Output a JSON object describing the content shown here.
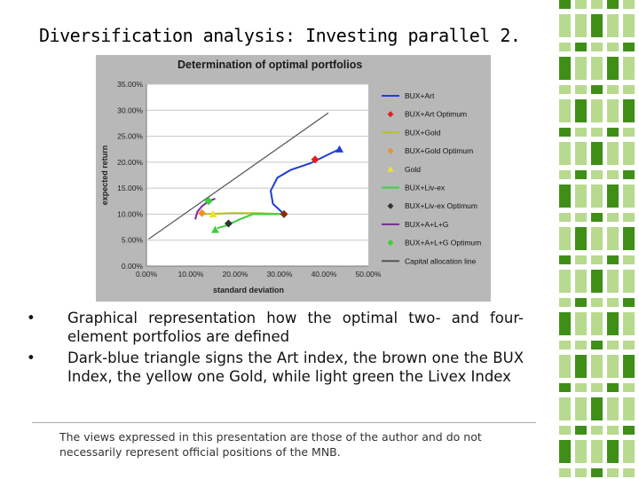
{
  "slide": {
    "title": "Diversification analysis: Investing parallel 2.",
    "bullets": [
      "Graphical representation how the optimal two- and four-element portfolios are defined",
      "Dark-blue triangle signs the Art index, the brown one the BUX Index, the yellow one Gold, while light green the Livex Index"
    ],
    "bullet_marker": "•",
    "disclaimer": "The views expressed in this presentation are those of the author and do not necessarily represent official positions of the MNB."
  },
  "chart_data": {
    "type": "scatter",
    "title": "Determination of optimal portfolios",
    "xlabel": "standard deviation",
    "ylabel": "expected return",
    "xlim": [
      0,
      50
    ],
    "ylim": [
      0,
      35
    ],
    "x_ticks": [
      "0.00%",
      "10.00%",
      "20.00%",
      "30.00%",
      "40.00%",
      "50.00%"
    ],
    "y_ticks": [
      "0.00%",
      "5.00%",
      "10.00%",
      "15.00%",
      "20.00%",
      "25.00%",
      "30.00%",
      "35.00%"
    ],
    "grid": true,
    "legend_position": "right",
    "series": [
      {
        "name": "BUX+Art",
        "kind": "line",
        "color": "#1f3fd0",
        "points": [
          [
            31.0,
            10.0
          ],
          [
            28.5,
            12.0
          ],
          [
            28.0,
            14.5
          ],
          [
            29.5,
            17.0
          ],
          [
            32.5,
            18.5
          ],
          [
            37.0,
            19.8
          ],
          [
            41.0,
            21.5
          ],
          [
            43.5,
            22.5
          ]
        ]
      },
      {
        "name": "BUX+Art Optimum",
        "kind": "marker",
        "marker": "diamond",
        "color": "#e02020",
        "points": [
          [
            38.0,
            20.5
          ]
        ]
      },
      {
        "name": "BUX+Gold",
        "kind": "line",
        "color": "#b5c21e",
        "points": [
          [
            13.0,
            10.0
          ],
          [
            19.0,
            10.2
          ],
          [
            25.0,
            10.2
          ],
          [
            31.0,
            10.0
          ]
        ]
      },
      {
        "name": "BUX+Gold Optimum",
        "kind": "marker",
        "marker": "diamond",
        "color": "#f0902a",
        "points": [
          [
            12.5,
            10.2
          ]
        ]
      },
      {
        "name": "Gold",
        "kind": "marker",
        "marker": "triangle",
        "color": "#f2e030",
        "points": [
          [
            15.0,
            10.0
          ]
        ]
      },
      {
        "name": "BUX+Liv-ex",
        "kind": "line",
        "color": "#3ad03a",
        "points": [
          [
            31.0,
            10.0
          ],
          [
            24.0,
            10.0
          ],
          [
            21.0,
            9.0
          ],
          [
            18.0,
            7.8
          ],
          [
            16.0,
            7.3
          ]
        ]
      },
      {
        "name": "BUX+Liv-ex Optimum",
        "kind": "marker",
        "marker": "diamond",
        "color": "#333333",
        "points": [
          [
            18.5,
            8.2
          ]
        ]
      },
      {
        "name": "BUX+A+L+G",
        "kind": "line",
        "color": "#7a2a9a",
        "points": [
          [
            11.0,
            9.0
          ],
          [
            11.5,
            10.5
          ],
          [
            12.5,
            11.5
          ],
          [
            14.0,
            12.5
          ],
          [
            15.5,
            13.0
          ]
        ]
      },
      {
        "name": "BUX+A+L+G Optimum",
        "kind": "marker",
        "marker": "diamond",
        "color": "#3ad03a",
        "points": [
          [
            14.0,
            12.5
          ]
        ]
      },
      {
        "name": "Capital allocation line",
        "kind": "line",
        "color": "#555555",
        "points": [
          [
            0.5,
            5.2
          ],
          [
            41.0,
            29.5
          ]
        ]
      }
    ],
    "marker_only": [
      {
        "marker": "triangle",
        "color": "#1f3fd0",
        "points": [
          [
            43.5,
            22.5
          ]
        ]
      },
      {
        "marker": "diamond",
        "color": "#8b2a10",
        "points": [
          [
            31.0,
            10.0
          ]
        ]
      },
      {
        "marker": "triangle",
        "color": "#3ad03a",
        "points": [
          [
            15.5,
            7.0
          ]
        ]
      }
    ]
  },
  "colors": {
    "plot_background": "#ffffff",
    "chart_area": "#b8b8b8",
    "grid": "#c8c8c8",
    "deco_green_dark": "#3f8f17",
    "deco_green_light": "#b7da8e"
  }
}
